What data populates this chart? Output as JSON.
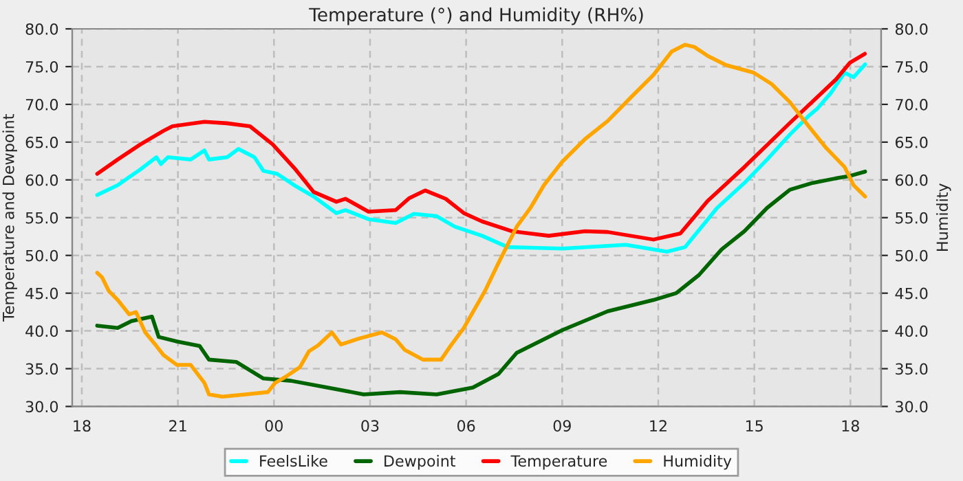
{
  "chart_data": {
    "type": "line",
    "title": "Temperature (°) and Humidity (RH%)",
    "ylabel": "Temperature and Dewpoint",
    "y2label": "Humidity",
    "xlim": [
      17.7,
      42.96
    ],
    "xticks": [
      {
        "value": 18,
        "label": "18"
      },
      {
        "value": 21,
        "label": "21"
      },
      {
        "value": 24,
        "label": "00"
      },
      {
        "value": 27,
        "label": "03"
      },
      {
        "value": 30,
        "label": "06"
      },
      {
        "value": 33,
        "label": "09"
      },
      {
        "value": 36,
        "label": "12"
      },
      {
        "value": 39,
        "label": "15"
      },
      {
        "value": 42,
        "label": "18"
      }
    ],
    "ylim": [
      30,
      80
    ],
    "yticks": [
      {
        "value": 30,
        "label": "30.0"
      },
      {
        "value": 35,
        "label": "35.0"
      },
      {
        "value": 40,
        "label": "40.0"
      },
      {
        "value": 45,
        "label": "45.0"
      },
      {
        "value": 50,
        "label": "50.0"
      },
      {
        "value": 55,
        "label": "55.0"
      },
      {
        "value": 60,
        "label": "60.0"
      },
      {
        "value": 65,
        "label": "65.0"
      },
      {
        "value": 70,
        "label": "70.0"
      },
      {
        "value": 75,
        "label": "75.0"
      },
      {
        "value": 80,
        "label": "80.0"
      }
    ],
    "y2lim": [
      30,
      80
    ],
    "y2ticks": [
      {
        "value": 30,
        "label": "30.0"
      },
      {
        "value": 35,
        "label": "35.0"
      },
      {
        "value": 40,
        "label": "40.0"
      },
      {
        "value": 45,
        "label": "45.0"
      },
      {
        "value": 50,
        "label": "50.0"
      },
      {
        "value": 55,
        "label": "55.0"
      },
      {
        "value": 60,
        "label": "60.0"
      },
      {
        "value": 65,
        "label": "65.0"
      },
      {
        "value": 70,
        "label": "70.0"
      },
      {
        "value": 75,
        "label": "75.0"
      },
      {
        "value": 80,
        "label": "80.0"
      }
    ],
    "grid": true,
    "legend": "bottom",
    "line_style": "solid",
    "marker": "none",
    "series": [
      {
        "name": "FeelsLike",
        "color": "#00ffff",
        "x": [
          18.48,
          19.12,
          19.83,
          20.33,
          20.47,
          20.69,
          21.4,
          21.83,
          21.97,
          22.54,
          22.89,
          23.39,
          23.67,
          24.1,
          24.67,
          25.24,
          25.95,
          26.23,
          26.95,
          27.8,
          28.37,
          29.08,
          29.65,
          30.5,
          31.3,
          33.0,
          34.99,
          36.27,
          36.84,
          37.84,
          38.69,
          39.4,
          40.11,
          40.68,
          40.96,
          41.39,
          41.82,
          42.1,
          42.46
        ],
        "values": [
          58.0,
          59.3,
          61.4,
          63.0,
          62.1,
          63.0,
          62.7,
          63.9,
          62.7,
          63.0,
          64.1,
          63.0,
          61.2,
          60.8,
          59.2,
          57.8,
          55.6,
          56.0,
          54.8,
          54.3,
          55.5,
          55.2,
          53.8,
          52.6,
          51.1,
          50.9,
          51.4,
          50.5,
          51.1,
          56.3,
          59.6,
          62.7,
          66.0,
          68.4,
          69.4,
          71.5,
          74.2,
          73.6,
          75.3
        ]
      },
      {
        "name": "Dewpoint",
        "color": "#006400",
        "x": [
          18.48,
          19.12,
          19.55,
          20.19,
          20.4,
          20.97,
          21.68,
          21.97,
          22.82,
          23.67,
          24.53,
          25.67,
          26.8,
          27.94,
          29.08,
          30.21,
          31.01,
          31.58,
          32.29,
          33.0,
          34.42,
          35.85,
          36.56,
          37.27,
          37.98,
          38.69,
          39.4,
          40.11,
          40.82,
          41.54,
          41.96,
          42.46
        ],
        "values": [
          40.7,
          40.4,
          41.3,
          41.9,
          39.2,
          38.6,
          38.0,
          36.2,
          35.9,
          33.7,
          33.4,
          32.5,
          31.6,
          31.9,
          31.6,
          32.5,
          34.3,
          37.1,
          38.6,
          40.1,
          42.6,
          44.1,
          45.0,
          47.4,
          50.8,
          53.2,
          56.3,
          58.7,
          59.6,
          60.2,
          60.5,
          61.1
        ]
      },
      {
        "name": "Temperature",
        "color": "#ff0000",
        "x": [
          18.48,
          19.12,
          19.83,
          20.55,
          20.83,
          21.83,
          22.53,
          23.25,
          23.96,
          24.67,
          25.24,
          25.95,
          26.23,
          26.95,
          27.8,
          28.23,
          28.72,
          29.36,
          29.93,
          30.5,
          31.44,
          32.58,
          33.71,
          34.42,
          35.85,
          36.69,
          37.54,
          38.69,
          40.1,
          41.55,
          41.98,
          42.45
        ],
        "values": [
          60.8,
          62.7,
          64.7,
          66.5,
          67.1,
          67.7,
          67.5,
          67.1,
          64.7,
          61.4,
          58.4,
          57.1,
          57.5,
          55.8,
          56.0,
          57.6,
          58.6,
          57.5,
          55.6,
          54.5,
          53.2,
          52.6,
          53.2,
          53.1,
          52.1,
          52.9,
          57.2,
          61.7,
          67.5,
          73.3,
          75.5,
          76.7
        ]
      },
      {
        "name": "Humidity",
        "color": "#ffa500",
        "axis": "y2",
        "x": [
          18.48,
          18.63,
          18.84,
          19.12,
          19.48,
          19.69,
          19.98,
          20.33,
          20.55,
          20.97,
          21.4,
          21.83,
          21.97,
          22.39,
          23.11,
          23.81,
          24.03,
          24.39,
          24.81,
          25.09,
          25.38,
          25.81,
          26.09,
          26.66,
          27.37,
          27.8,
          28.08,
          28.65,
          29.22,
          29.51,
          29.93,
          30.59,
          31.01,
          31.58,
          32.01,
          32.43,
          33.0,
          33.71,
          34.42,
          35.14,
          35.85,
          36.42,
          36.84,
          37.13,
          37.55,
          38.12,
          38.98,
          39.54,
          40.11,
          40.68,
          41.25,
          41.82,
          42.1,
          42.46
        ],
        "values": [
          47.7,
          47.1,
          45.3,
          44.1,
          42.2,
          42.5,
          39.8,
          38.0,
          36.8,
          35.5,
          35.5,
          33.1,
          31.6,
          31.3,
          31.6,
          31.9,
          33.1,
          34.0,
          35.2,
          37.3,
          38.1,
          39.8,
          38.2,
          39.0,
          39.8,
          38.9,
          37.5,
          36.2,
          36.2,
          38.0,
          40.4,
          45.3,
          49.0,
          53.8,
          56.3,
          59.3,
          62.4,
          65.4,
          67.8,
          70.9,
          73.9,
          77.0,
          77.9,
          77.6,
          76.4,
          75.2,
          74.2,
          72.7,
          70.3,
          67.2,
          64.2,
          61.7,
          59.3,
          57.8
        ]
      }
    ]
  }
}
